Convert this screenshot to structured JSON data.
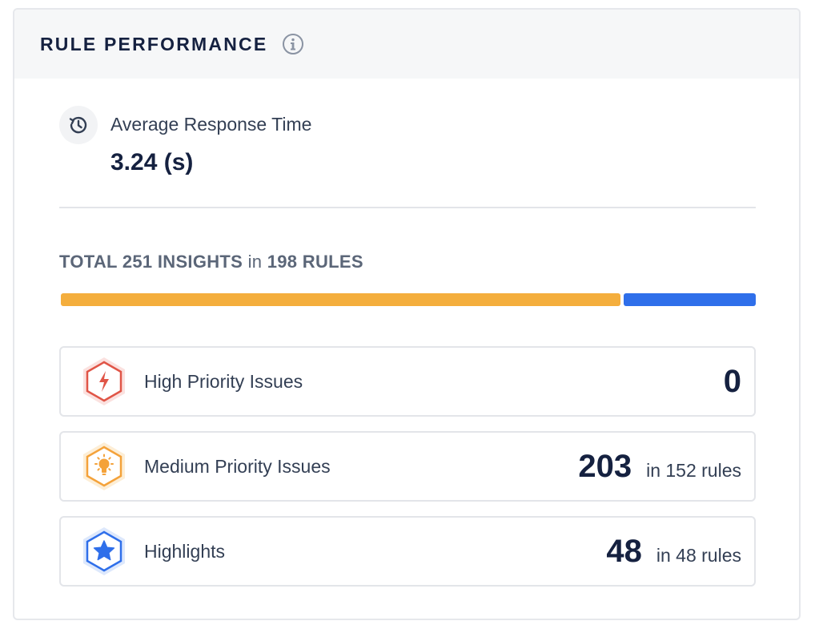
{
  "header": {
    "title": "RULE PERFORMANCE",
    "info_icon": "info-icon"
  },
  "avg_response": {
    "icon": "history-icon",
    "label": "Average Response Time",
    "value": "3.24 (s)"
  },
  "totals": {
    "prefix": "TOTAL",
    "insights_count": "251",
    "insights_word": "INSIGHTS",
    "in_word": "in",
    "rules_count": "198",
    "rules_word": "RULES"
  },
  "distribution": {
    "medium_fraction": 0.8085,
    "highlights_fraction": 0.1915,
    "medium_color": "#f4ae3d",
    "highlights_color": "#2f6fea"
  },
  "issues": [
    {
      "icon": "lightning-icon",
      "label": "High Priority Issues",
      "count": "0",
      "sub": "",
      "color": "#e05547"
    },
    {
      "icon": "lightbulb-icon",
      "label": "Medium Priority Issues",
      "count": "203",
      "sub": "in 152 rules",
      "color": "#f4a23a"
    },
    {
      "icon": "star-icon",
      "label": "Highlights",
      "count": "48",
      "sub": "in 48 rules",
      "color": "#2f6fea"
    }
  ]
}
